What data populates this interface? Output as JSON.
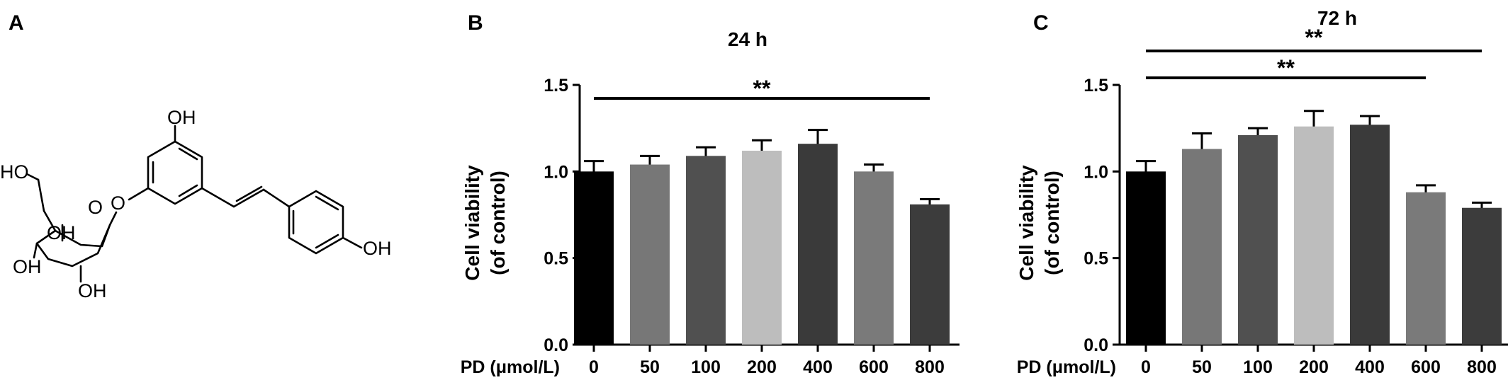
{
  "panels": {
    "a": {
      "letter": "A",
      "labels": {
        "oh_top": "OH",
        "ho_ch2": "HO",
        "oh_glc3": "OH",
        "oh_glc4": "OH",
        "oh_glc2": "OH",
        "oh_phenol": "OH"
      }
    },
    "b": {
      "letter": "B"
    },
    "c": {
      "letter": "C"
    }
  },
  "chart_data": [
    {
      "type": "bar",
      "title": "24 h",
      "xlabel": "PD (μmol/L)",
      "ylabel": "Cell viability",
      "ylabel_line2": "(of control)",
      "categories": [
        "0",
        "50",
        "100",
        "200",
        "400",
        "600",
        "800"
      ],
      "values": [
        1.0,
        1.04,
        1.09,
        1.12,
        1.16,
        1.0,
        0.81
      ],
      "errors": [
        0.06,
        0.05,
        0.05,
        0.06,
        0.08,
        0.04,
        0.03
      ],
      "bar_colors": [
        "#000000",
        "#777777",
        "#505050",
        "#bdbdbd",
        "#3a3a3a",
        "#7a7a7a",
        "#3c3c3c"
      ],
      "ylim": [
        0,
        1.5
      ],
      "yticks": [
        "0.0",
        "0.5",
        "1.0",
        "1.5"
      ],
      "grid": false,
      "significance": [
        {
          "from": "0",
          "to": "800",
          "label": "**"
        }
      ]
    },
    {
      "type": "bar",
      "title": "72 h",
      "xlabel": "PD (μmol/L)",
      "ylabel": "Cell viability",
      "ylabel_line2": "(of control)",
      "categories": [
        "0",
        "50",
        "100",
        "200",
        "400",
        "600",
        "800"
      ],
      "values": [
        1.0,
        1.13,
        1.21,
        1.26,
        1.27,
        0.88,
        0.79
      ],
      "errors": [
        0.06,
        0.09,
        0.04,
        0.09,
        0.05,
        0.04,
        0.03
      ],
      "bar_colors": [
        "#000000",
        "#777777",
        "#505050",
        "#bdbdbd",
        "#3a3a3a",
        "#7a7a7a",
        "#3c3c3c"
      ],
      "ylim": [
        0,
        1.5
      ],
      "yticks": [
        "0.0",
        "0.5",
        "1.0",
        "1.5"
      ],
      "grid": false,
      "significance": [
        {
          "from": "0",
          "to": "600",
          "label": "**"
        },
        {
          "from": "0",
          "to": "800",
          "label": "**"
        }
      ]
    }
  ]
}
